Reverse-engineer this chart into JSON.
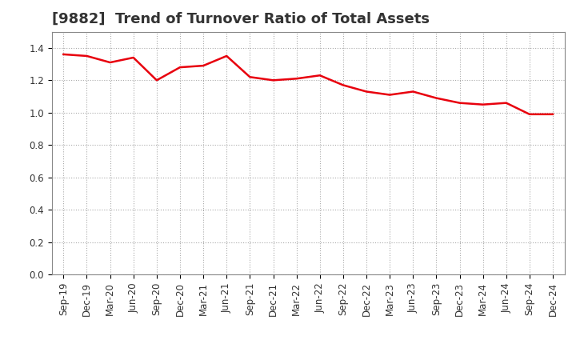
{
  "title": "[9882]  Trend of Turnover Ratio of Total Assets",
  "labels": [
    "Sep-19",
    "Dec-19",
    "Mar-20",
    "Jun-20",
    "Sep-20",
    "Dec-20",
    "Mar-21",
    "Jun-21",
    "Sep-21",
    "Dec-21",
    "Mar-22",
    "Jun-22",
    "Sep-22",
    "Dec-22",
    "Mar-23",
    "Jun-23",
    "Sep-23",
    "Dec-23",
    "Mar-24",
    "Jun-24",
    "Sep-24",
    "Dec-24"
  ],
  "values": [
    1.36,
    1.35,
    1.31,
    1.34,
    1.2,
    1.28,
    1.29,
    1.35,
    1.22,
    1.2,
    1.21,
    1.23,
    1.17,
    1.13,
    1.11,
    1.13,
    1.09,
    1.06,
    1.05,
    1.06,
    0.99,
    0.99
  ],
  "line_color": "#e8000d",
  "line_width": 1.8,
  "ylim": [
    0.0,
    1.5
  ],
  "yticks": [
    0.0,
    0.2,
    0.4,
    0.6,
    0.8,
    1.0,
    1.2,
    1.4
  ],
  "grid_color": "#aaaaaa",
  "grid_style": "dotted",
  "bg_color": "#ffffff",
  "title_fontsize": 13,
  "tick_fontsize": 8.5,
  "title_color": "#333333"
}
